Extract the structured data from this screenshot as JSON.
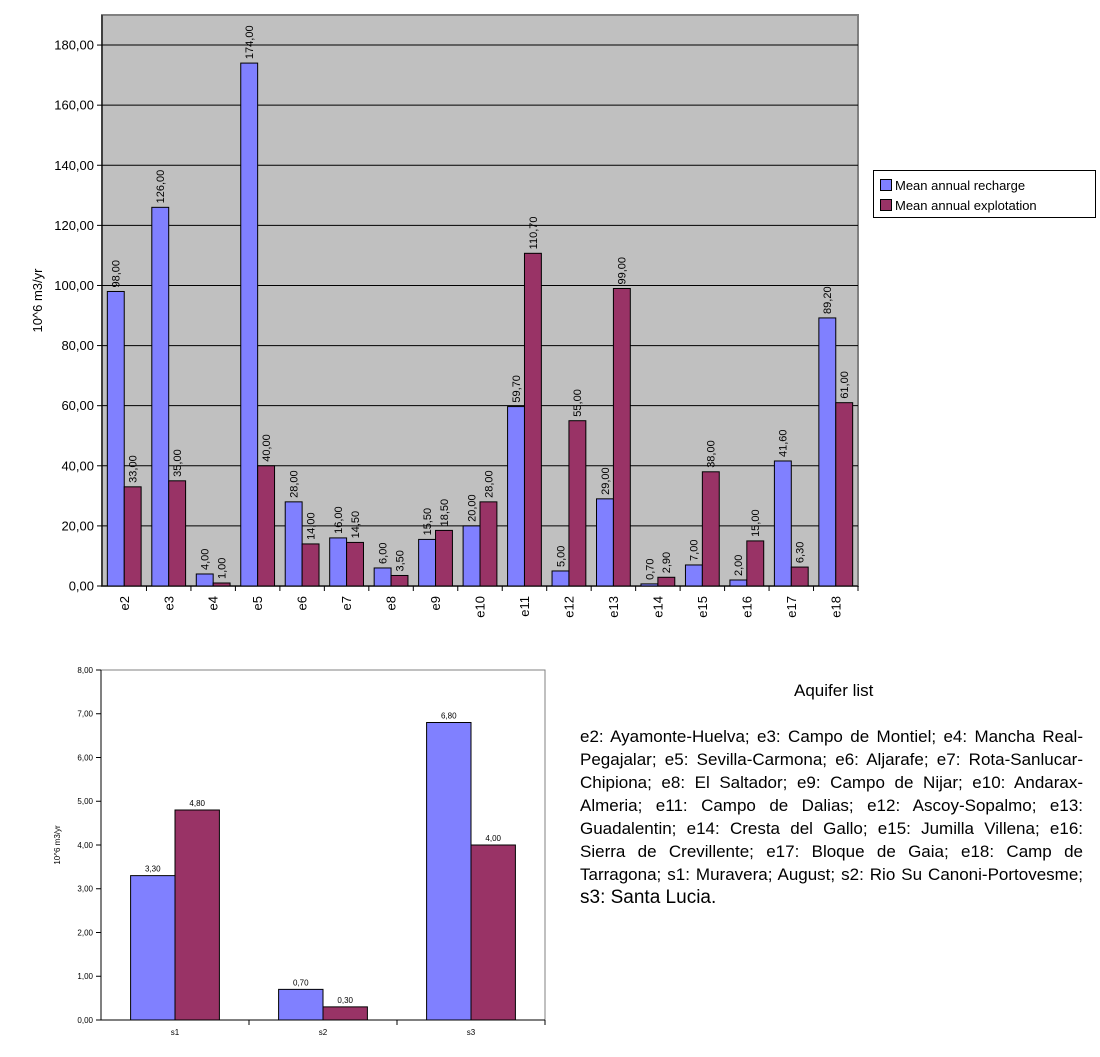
{
  "chart_data": [
    {
      "type": "bar",
      "ylabel": "10^6 m3/yr",
      "xlabel": "",
      "ylim": [
        0,
        190
      ],
      "yticks": [
        "0,00",
        "20,00",
        "40,00",
        "60,00",
        "80,00",
        "100,00",
        "120,00",
        "140,00",
        "160,00",
        "180,00"
      ],
      "categories": [
        "e2",
        "e3",
        "e4",
        "e5",
        "e6",
        "e7",
        "e8",
        "e9",
        "e10",
        "e11",
        "e12",
        "e13",
        "e14",
        "e15",
        "e16",
        "e17",
        "e18"
      ],
      "series": [
        {
          "name": "Mean annual recharge",
          "color": "#8080ff",
          "values": [
            98.0,
            126.0,
            4.0,
            174.0,
            28.0,
            16.0,
            6.0,
            15.5,
            20.0,
            59.7,
            5.0,
            29.0,
            0.7,
            7.0,
            2.0,
            41.6,
            89.2
          ],
          "labels": [
            "98,00",
            "126,00",
            "4,00",
            "174,00",
            "28,00",
            "16,00",
            "6,00",
            "15,50",
            "20,00",
            "59,70",
            "5,00",
            "29,00",
            "0,70",
            "7,00",
            "2,00",
            "41,60",
            "89,20"
          ]
        },
        {
          "name": "Mean annual explotation",
          "color": "#993366",
          "values": [
            33.0,
            35.0,
            1.0,
            40.0,
            14.0,
            14.5,
            3.5,
            18.5,
            28.0,
            110.7,
            55.0,
            99.0,
            2.9,
            38.0,
            15.0,
            6.3,
            61.0
          ],
          "labels": [
            "33,00",
            "35,00",
            "1,00",
            "40,00",
            "14,00",
            "14,50",
            "3,50",
            "18,50",
            "28,00",
            "110,70",
            "55,00",
            "99,00",
            "2,90",
            "38,00",
            "15,00",
            "6,30",
            "61,00"
          ]
        }
      ],
      "grid": true,
      "legend": "right",
      "plot_background": "#c0c0c0"
    },
    {
      "type": "bar",
      "ylabel": "10^6 m3/yr",
      "ylim": [
        0,
        8
      ],
      "yticks": [
        "0,00",
        "1,00",
        "2,00",
        "3,00",
        "4,00",
        "5,00",
        "6,00",
        "7,00",
        "8,00"
      ],
      "categories": [
        "s1",
        "s2",
        "s3"
      ],
      "series": [
        {
          "color": "#8080ff",
          "values": [
            3.3,
            0.7,
            6.8
          ],
          "labels": [
            "3,30",
            "0,70",
            "6,80"
          ]
        },
        {
          "color": "#993366",
          "values": [
            4.8,
            0.3,
            4.0
          ],
          "labels": [
            "4,80",
            "0,30",
            "4,00"
          ]
        }
      ],
      "grid": false
    }
  ],
  "legend": {
    "recharge": "Mean annual recharge",
    "explotation": "Mean annual explotation"
  },
  "aquifer_list": {
    "title": "Aquifer list",
    "text": "e2: Ayamonte-Huelva; e3: Campo de Montiel; e4: Mancha Real-Pegajalar; e5: Sevilla-Carmona; e6: Aljarafe; e7: Rota-Sanlucar-Chipiona; e8: El Saltador; e9: Campo de Nijar; e10: Andarax-Almeria; e11: Campo de Dalias; e12: Ascoy-Sopalmo; e13: Guadalentin; e14: Cresta del Gallo; e15: Jumilla Villena; e16: Sierra de Crevillente; e17: Bloque de Gaia; e18: Camp de Tarragona; s1: Muravera; August; s2: Rio Su Canoni-Portovesme; ",
    "text_end": "s3: Santa Lucia."
  }
}
